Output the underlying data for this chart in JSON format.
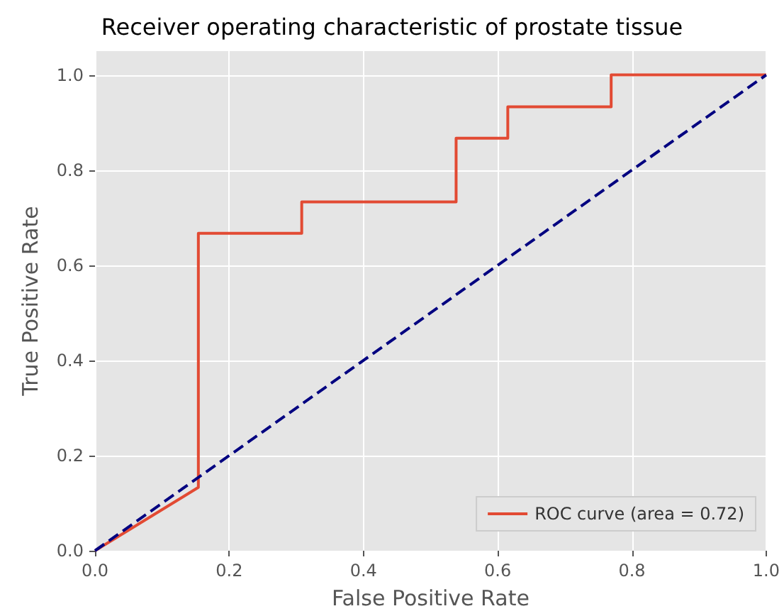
{
  "chart_data": {
    "type": "line",
    "title": "Receiver operating characteristic of prostate tissue",
    "xlabel": "False Positive Rate",
    "ylabel": "True Positive Rate",
    "xlim": [
      0,
      1
    ],
    "ylim": [
      0,
      1.05
    ],
    "xticks": [
      {
        "value": 0,
        "label": "0.0"
      },
      {
        "value": 0.2,
        "label": "0.2"
      },
      {
        "value": 0.4,
        "label": "0.4"
      },
      {
        "value": 0.6,
        "label": "0.6"
      },
      {
        "value": 0.8,
        "label": "0.8"
      },
      {
        "value": 1,
        "label": "1.0"
      }
    ],
    "yticks": [
      {
        "value": 0,
        "label": "0.0"
      },
      {
        "value": 0.2,
        "label": "0.2"
      },
      {
        "value": 0.4,
        "label": "0.4"
      },
      {
        "value": 0.6,
        "label": "0.6"
      },
      {
        "value": 0.8,
        "label": "0.8"
      },
      {
        "value": 1,
        "label": "1.0"
      }
    ],
    "series": [
      {
        "name": "ROC curve (area = 0.72)",
        "color": "#e24a33",
        "line_style": "solid",
        "x": [
          0,
          0.154,
          0.154,
          0.308,
          0.308,
          0.538,
          0.538,
          0.615,
          0.615,
          0.769,
          0.769,
          1
        ],
        "values": [
          0,
          0.133,
          0.667,
          0.667,
          0.733,
          0.733,
          0.867,
          0.867,
          0.933,
          0.933,
          1,
          1
        ]
      },
      {
        "color": "#000080",
        "line_style": "dashed",
        "x": [
          0,
          1
        ],
        "values": [
          0,
          1
        ]
      }
    ],
    "grid": true,
    "legend": "bottom right",
    "marker": "none"
  }
}
